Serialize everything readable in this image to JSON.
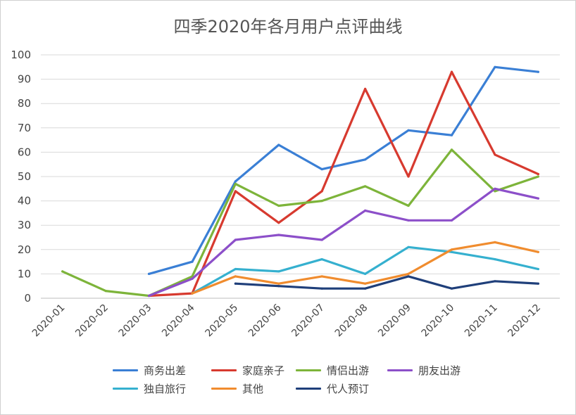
{
  "chart_data": {
    "type": "line",
    "title": "四季2020年各月用户点评曲线",
    "categories": [
      "2020-01",
      "2020-02",
      "2020-03",
      "2020-04",
      "2020-05",
      "2020-06",
      "2020-07",
      "2020-08",
      "2020-09",
      "2020-10",
      "2020-11",
      "2020-12"
    ],
    "ylim": [
      0,
      100
    ],
    "yticks": [
      0,
      10,
      20,
      30,
      40,
      50,
      60,
      70,
      80,
      90,
      100
    ],
    "grid": true,
    "legend_position": "bottom",
    "series": [
      {
        "name": "商务出差",
        "color": "#3a7fd5",
        "values": [
          null,
          null,
          10,
          15,
          48,
          63,
          53,
          57,
          69,
          67,
          95,
          93
        ]
      },
      {
        "name": "家庭亲子",
        "color": "#d73a2f",
        "values": [
          null,
          null,
          1,
          2,
          44,
          31,
          44,
          86,
          50,
          93,
          59,
          51
        ]
      },
      {
        "name": "情侣出游",
        "color": "#7db43a",
        "values": [
          11,
          3,
          1,
          9,
          47,
          38,
          40,
          46,
          38,
          61,
          44,
          50
        ]
      },
      {
        "name": "朋友出游",
        "color": "#8c4fc9",
        "values": [
          null,
          null,
          1,
          8,
          24,
          26,
          24,
          36,
          32,
          32,
          45,
          41
        ]
      },
      {
        "name": "独自旅行",
        "color": "#35b0cf",
        "values": [
          null,
          null,
          null,
          2,
          12,
          11,
          16,
          10,
          21,
          19,
          16,
          12
        ]
      },
      {
        "name": "其他",
        "color": "#f08c2e",
        "values": [
          null,
          null,
          null,
          2,
          9,
          6,
          9,
          6,
          10,
          20,
          23,
          19
        ]
      },
      {
        "name": "代人预订",
        "color": "#1f3f7a",
        "values": [
          null,
          null,
          null,
          null,
          6,
          5,
          4,
          4,
          9,
          4,
          7,
          6
        ]
      }
    ]
  }
}
